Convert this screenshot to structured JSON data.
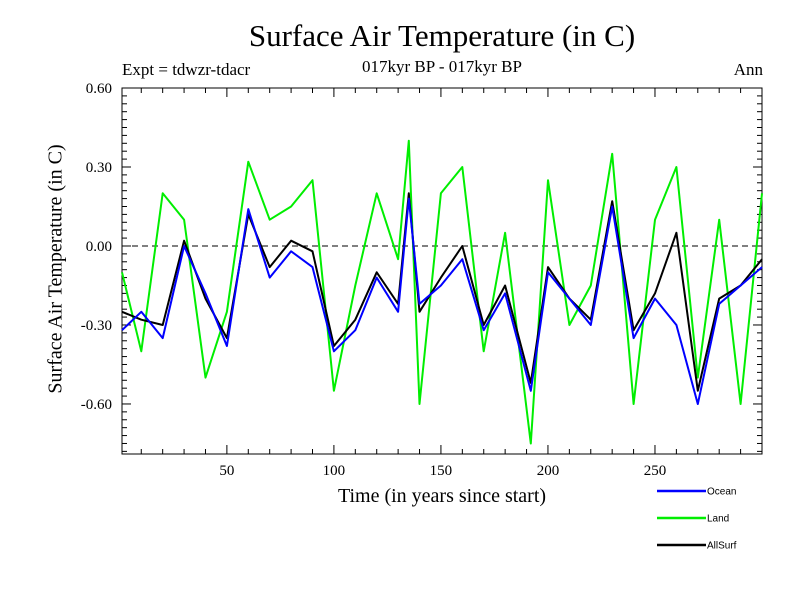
{
  "chart_data": {
    "type": "line",
    "title": "Surface Air Temperature (in C)",
    "subtitle": "017kyr BP - 017kyr BP",
    "experiment": "Expt = tdwzr-tdacr",
    "season": "Ann",
    "xlabel": "Time (in years since start)",
    "ylabel": "Surface Air Temperature (in C)",
    "xlim": [
      1,
      300
    ],
    "ylim": [
      -0.79,
      0.6
    ],
    "xticks": [
      50,
      100,
      150,
      200,
      250
    ],
    "xtick_labels": [
      "50",
      "100",
      "150",
      "200",
      "250"
    ],
    "yticks": [
      -0.6,
      -0.3,
      0.0,
      0.3,
      0.6
    ],
    "ytick_labels": [
      "-0.60",
      "-0.30",
      "0.00",
      "0.30",
      "0.60"
    ],
    "zero_line": true,
    "grid": false,
    "legend_position": "bottom-right",
    "x": [
      1,
      10,
      20,
      30,
      40,
      50,
      60,
      70,
      80,
      90,
      100,
      110,
      120,
      130,
      135,
      140,
      150,
      160,
      170,
      180,
      192,
      200,
      210,
      220,
      230,
      240,
      250,
      260,
      270,
      280,
      290,
      300
    ],
    "series": [
      {
        "name": "Ocean",
        "color": "#0000ff",
        "values": [
          -0.32,
          -0.25,
          -0.35,
          0.0,
          -0.18,
          -0.38,
          0.14,
          -0.12,
          -0.02,
          -0.08,
          -0.4,
          -0.32,
          -0.12,
          -0.25,
          0.18,
          -0.22,
          -0.15,
          -0.05,
          -0.32,
          -0.18,
          -0.55,
          -0.1,
          -0.2,
          -0.3,
          0.15,
          -0.35,
          -0.2,
          -0.3,
          -0.6,
          -0.22,
          -0.15,
          -0.08
        ]
      },
      {
        "name": "Land",
        "color": "#00ee00",
        "values": [
          -0.1,
          -0.4,
          0.2,
          0.1,
          -0.5,
          -0.25,
          0.32,
          0.1,
          0.15,
          0.25,
          -0.55,
          -0.15,
          0.2,
          -0.05,
          0.4,
          -0.6,
          0.2,
          0.3,
          -0.4,
          0.05,
          -0.75,
          0.25,
          -0.3,
          -0.15,
          0.35,
          -0.6,
          0.1,
          0.3,
          -0.5,
          0.1,
          -0.6,
          0.2
        ]
      },
      {
        "name": "AllSurf",
        "color": "#000000",
        "values": [
          -0.25,
          -0.28,
          -0.3,
          0.02,
          -0.2,
          -0.35,
          0.12,
          -0.08,
          0.02,
          -0.02,
          -0.38,
          -0.28,
          -0.1,
          -0.22,
          0.2,
          -0.25,
          -0.12,
          0.0,
          -0.3,
          -0.15,
          -0.52,
          -0.08,
          -0.2,
          -0.28,
          0.17,
          -0.32,
          -0.18,
          0.05,
          -0.55,
          -0.2,
          -0.15,
          -0.05
        ]
      }
    ]
  }
}
